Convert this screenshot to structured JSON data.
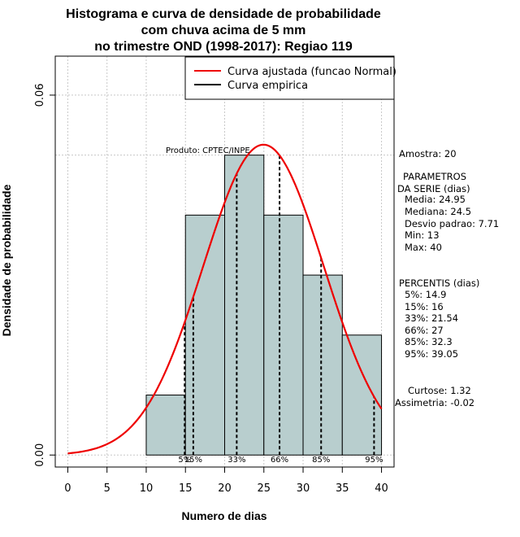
{
  "chart_data": {
    "type": "bar",
    "title_lines": [
      "Histograma e curva de densidade de probabilidade",
      "com chuva acima de 5 mm",
      "no trimestre OND (1998-2017): Regiao 119"
    ],
    "xlabel": "Numero de dias",
    "ylabel": "Densidade de probabilidade",
    "xlim": [
      -1.6,
      41.6
    ],
    "ylim": [
      -0.002,
      0.0665
    ],
    "x_ticks": [
      0,
      5,
      10,
      15,
      20,
      25,
      30,
      35,
      40
    ],
    "x_tick_labels": [
      "0",
      "5",
      "10",
      "15",
      "20",
      "25",
      "30",
      "35",
      "40"
    ],
    "y_ticks": [
      0.0,
      0.06
    ],
    "y_tick_labels": [
      "0.00",
      "0.06"
    ],
    "bins": [
      {
        "x0": 10,
        "x1": 15,
        "density": 0.01
      },
      {
        "x0": 15,
        "x1": 20,
        "density": 0.04
      },
      {
        "x0": 20,
        "x1": 25,
        "density": 0.05
      },
      {
        "x0": 25,
        "x1": 30,
        "density": 0.04
      },
      {
        "x0": 30,
        "x1": 35,
        "density": 0.03
      },
      {
        "x0": 35,
        "x1": 40,
        "density": 0.02
      }
    ],
    "fitted_curve": {
      "name": "Curva ajustada (funcao Normal)",
      "mean": 24.95,
      "sd": 7.71,
      "x_from": 0,
      "x_to": 40,
      "color": "#ee0000"
    },
    "empirical_curve": {
      "name": "Curva empirica",
      "color": "#000000"
    },
    "reference_line_y": 0.05,
    "percentiles": [
      {
        "label": "5%",
        "value": 14.9
      },
      {
        "label": "15%",
        "value": 16
      },
      {
        "label": "33%",
        "value": 21.54
      },
      {
        "label": "66%",
        "value": 27
      },
      {
        "label": "85%",
        "value": 32.3
      },
      {
        "label": "95%",
        "value": 39.05
      }
    ],
    "colors": {
      "bar_fill": "#b8cece",
      "grid": "#c8c8c8"
    },
    "legend": {
      "position": "top-right"
    }
  },
  "annotation": {
    "producer": "Produto: CPTEC/INPE"
  },
  "side_panel": {
    "sample": "Amostra: 20",
    "params_header_1": "PARAMETROS",
    "params_header_2": "DA SERIE (dias)",
    "params": [
      "Media: 24.95",
      "Mediana: 24.5",
      "Desvio padrao: 7.71",
      "Min: 13",
      "Max: 40"
    ],
    "percentiles_header": "PERCENTIS (dias)",
    "percentile_lines": [
      "5%: 14.9",
      "15%: 16",
      "33%: 21.54",
      "66%: 27",
      "85%: 32.3",
      "95%: 39.05"
    ],
    "curtose": "Curtose: 1.32",
    "assimetria": "Assimetria: -0.02"
  }
}
